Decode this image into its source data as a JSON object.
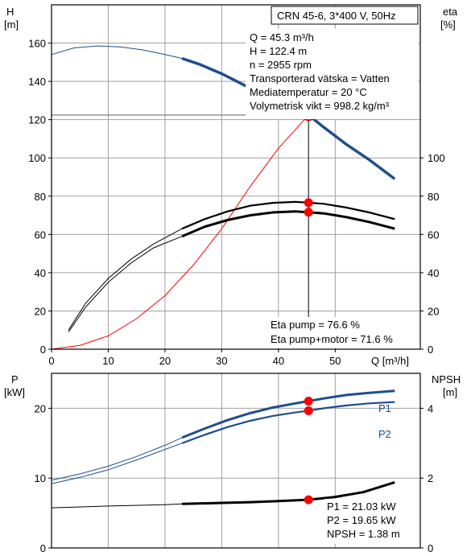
{
  "chart_data": [
    {
      "type": "line",
      "title": "CRN 45-6, 3*400 V, 50Hz",
      "left_axis": {
        "label_name": "H",
        "label_unit": "[m]",
        "ylim": [
          0,
          180
        ],
        "ticks": [
          0,
          20,
          40,
          60,
          80,
          100,
          120,
          140,
          160
        ]
      },
      "right_axis": {
        "label_name": "eta",
        "label_unit": "[%]",
        "ylim": [
          0,
          180
        ],
        "ticks": [
          0,
          20,
          40,
          60,
          80,
          100
        ]
      },
      "x_axis": {
        "label": "Q [m³/h]",
        "xlim": [
          0,
          65
        ],
        "ticks": [
          0,
          10,
          20,
          30,
          40,
          50
        ]
      },
      "grid": true,
      "info": [
        "Q = 45.3 m³/h",
        "H = 122.4 m",
        "n = 2955 rpm",
        "Transporterad vätska = Vatten",
        "Mediatemperatur = 20 °C",
        "Volymetrisk vikt = 998.2 kg/m³"
      ],
      "eta_text": [
        "Eta pump = 76.6 %",
        "Eta pump+motor = 71.6 %"
      ],
      "duty_point": {
        "x": 45.3,
        "H": 122.4,
        "eta_pump": 76.6,
        "eta_pump_motor": 71.6
      },
      "series": [
        {
          "id": "H",
          "color": "#1f4e8c",
          "x": [
            0,
            4,
            8,
            12,
            16,
            20,
            23,
            26,
            30,
            34,
            38,
            42,
            45.3,
            48,
            52,
            56,
            60.5
          ],
          "values": [
            154,
            157.5,
            158.5,
            158,
            156.5,
            154,
            152,
            149,
            144,
            138,
            131,
            126,
            122.4,
            116,
            107,
            99,
            89
          ],
          "thin_until": 23
        },
        {
          "id": "eta_pump",
          "color": "#000000",
          "x": [
            3,
            6,
            10,
            14,
            18,
            23,
            27,
            31,
            35,
            39,
            43,
            45.3,
            48,
            52,
            56,
            60.5
          ],
          "values": [
            10,
            24,
            37,
            47,
            55,
            63,
            68,
            72,
            75,
            76.5,
            77,
            76.6,
            76,
            74,
            71.5,
            68
          ],
          "thin_until": 23
        },
        {
          "id": "eta_pump_motor",
          "color": "#000000",
          "x": [
            3,
            6,
            10,
            14,
            18,
            23,
            27,
            31,
            35,
            39,
            43,
            45.3,
            48,
            52,
            56,
            60.5
          ],
          "values": [
            9,
            22,
            35,
            45,
            53,
            59,
            64,
            67.5,
            70,
            71.5,
            72,
            71.6,
            71,
            69,
            66.5,
            63
          ],
          "thin_until": 23
        },
        {
          "id": "system",
          "color": "#ff0000",
          "x": [
            0,
            5,
            10,
            15,
            20,
            25,
            30,
            35,
            40,
            45.3
          ],
          "values": [
            0,
            2,
            7,
            16,
            28,
            44,
            63,
            85,
            105,
            122.4
          ]
        }
      ]
    },
    {
      "type": "line",
      "left_axis": {
        "label_name": "P",
        "label_unit": "[kW]",
        "ylim": [
          0,
          25
        ],
        "ticks": [
          0,
          10,
          20
        ]
      },
      "right_axis": {
        "label_name": "NPSH",
        "label_unit": "[m]",
        "ylim": [
          0,
          5
        ],
        "ticks": [
          0,
          2,
          4
        ]
      },
      "x_axis": {
        "xlim": [
          0,
          65
        ]
      },
      "grid": true,
      "info": [
        "P1 = 21.03 kW",
        "P2 = 19.65 kW",
        "NPSH = 1.38 m"
      ],
      "duty_point": {
        "x": 45.3,
        "P1": 21.03,
        "P2": 19.65,
        "NPSH": 1.38
      },
      "series": [
        {
          "id": "P1",
          "name": "P1",
          "color": "#1f4e8c",
          "x": [
            0,
            5,
            10,
            15,
            20,
            23,
            27,
            31,
            35,
            39,
            43,
            45.3,
            48,
            52,
            56,
            60.5
          ],
          "values": [
            9.7,
            10.6,
            11.7,
            13.1,
            14.7,
            15.8,
            17.1,
            18.3,
            19.3,
            20.1,
            20.7,
            21.03,
            21.4,
            21.9,
            22.2,
            22.5
          ],
          "thin_until": 23
        },
        {
          "id": "P2",
          "name": "P2",
          "color": "#1f4e8c",
          "x": [
            0,
            5,
            10,
            15,
            20,
            23,
            27,
            31,
            35,
            39,
            43,
            45.3,
            48,
            52,
            56,
            60.5
          ],
          "values": [
            9.2,
            10.1,
            11.2,
            12.6,
            14.1,
            15.0,
            16.2,
            17.3,
            18.2,
            18.9,
            19.4,
            19.65,
            20.0,
            20.4,
            20.7,
            20.9
          ],
          "thin_until": 23
        },
        {
          "id": "NPSH",
          "color": "#000000",
          "axis": "right",
          "x": [
            0,
            10,
            20,
            23,
            30,
            35,
            40,
            45.3,
            50,
            55,
            60.5
          ],
          "values": [
            1.15,
            1.2,
            1.24,
            1.26,
            1.29,
            1.31,
            1.34,
            1.38,
            1.46,
            1.6,
            1.88
          ],
          "thin_until": 23
        }
      ]
    }
  ]
}
